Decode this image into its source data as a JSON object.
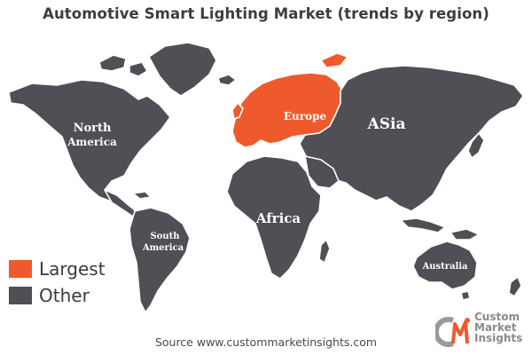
{
  "title": "Automotive Smart Lighting Market (trends by region)",
  "regions": {
    "north_america": {
      "line1": "North",
      "line2": "America",
      "category": "Other"
    },
    "south_america": {
      "line1": "South",
      "line2": "America",
      "category": "Other"
    },
    "europe": {
      "label": "Europe",
      "category": "Largest"
    },
    "africa": {
      "label": "Africa",
      "category": "Other"
    },
    "asia": {
      "label": "ASia",
      "category": "Other"
    },
    "australia": {
      "label": "Australia",
      "category": "Other"
    }
  },
  "legend": [
    {
      "label": "Largest",
      "color": "#ef5a2c"
    },
    {
      "label": "Other",
      "color": "#4f4f55"
    }
  ],
  "source": "Source www.custommarketinsights.com",
  "logo": {
    "line1": "Custom",
    "line2": "Market",
    "line3": "Insights",
    "mark": "CMI"
  },
  "colors": {
    "largest": "#ef5a2c",
    "other": "#4f4f55",
    "title": "#3d3d3d"
  }
}
